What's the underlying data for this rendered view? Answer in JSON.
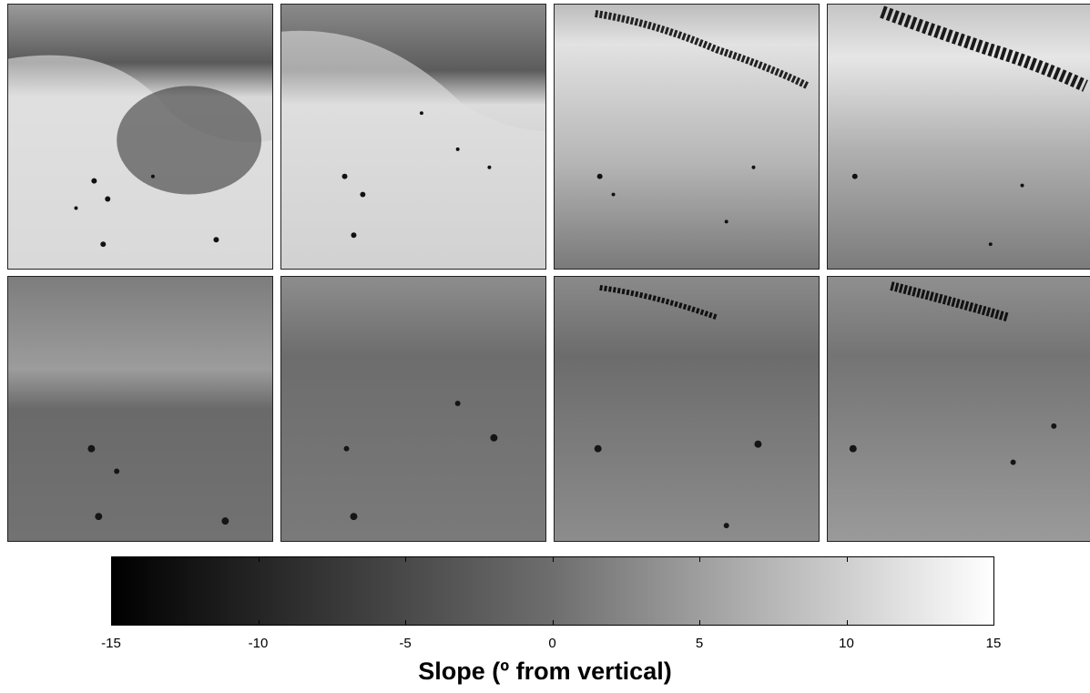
{
  "colorbar": {
    "min": -15,
    "max": 15,
    "gradient_colors": [
      "#000000",
      "#6e6e6e",
      "#ffffff"
    ],
    "ticks": [
      "-15",
      "-10",
      "-5",
      "0",
      "5",
      "10",
      "15"
    ],
    "label": "Slope (º from vertical)"
  },
  "panels": {
    "top_row": [
      "shaded-relief-1",
      "shaded-relief-2",
      "shaded-relief-3",
      "shaded-relief-4"
    ],
    "bottom_row": [
      "slope-map-1",
      "slope-map-2",
      "slope-map-3",
      "slope-map-4"
    ]
  }
}
